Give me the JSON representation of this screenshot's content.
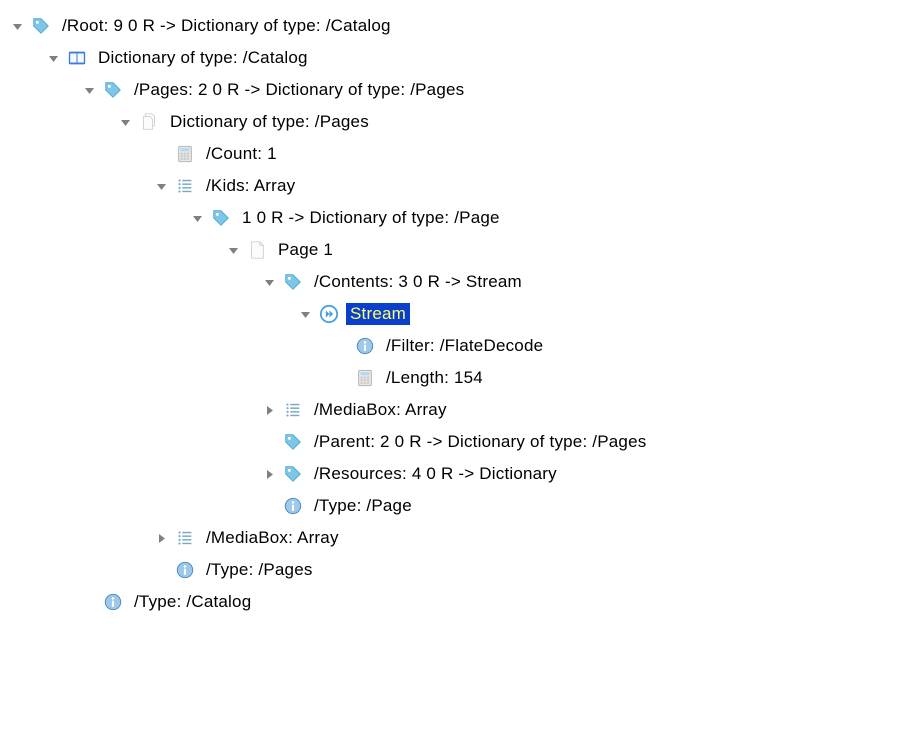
{
  "indentUnit": 36,
  "baseIndent": 2,
  "colors": {
    "selection_bg": "#0a3fce",
    "selection_fg": "#ffff66",
    "arrow": "#808080",
    "text": "#000000",
    "tag_blue": "#7fc5e8",
    "tag_stroke": "#4aa7d6",
    "book_blue": "#3f7bd9",
    "info_bg": "#9cc8ea",
    "info_border": "#4a84bb",
    "calc_fill": "#e8e8e8",
    "calc_border": "#b0b0b0",
    "list_stroke": "#7aa7c7",
    "page_fill": "#fcfcfc",
    "page_border": "#cfcfcf",
    "play_ring": "#4aa0df"
  },
  "nodes": [
    {
      "depth": 0,
      "arrow": "down",
      "icon": "tag",
      "label": "/Root: 9 0 R -> Dictionary of type: /Catalog",
      "selected": false,
      "interactable": true
    },
    {
      "depth": 1,
      "arrow": "down",
      "icon": "book",
      "label": "Dictionary of type: /Catalog",
      "selected": false,
      "interactable": true
    },
    {
      "depth": 2,
      "arrow": "down",
      "icon": "tag",
      "label": "/Pages: 2 0 R -> Dictionary of type: /Pages",
      "selected": false,
      "interactable": true
    },
    {
      "depth": 3,
      "arrow": "down",
      "icon": "pages",
      "label": "Dictionary of type: /Pages",
      "selected": false,
      "interactable": true
    },
    {
      "depth": 4,
      "arrow": "none",
      "icon": "calc",
      "label": "/Count: 1",
      "selected": false,
      "interactable": true
    },
    {
      "depth": 4,
      "arrow": "down",
      "icon": "list",
      "label": "/Kids: Array",
      "selected": false,
      "interactable": true
    },
    {
      "depth": 5,
      "arrow": "down",
      "icon": "tag",
      "label": "1 0 R -> Dictionary of type: /Page",
      "selected": false,
      "interactable": true
    },
    {
      "depth": 6,
      "arrow": "down",
      "icon": "page",
      "label": "Page 1",
      "selected": false,
      "interactable": true
    },
    {
      "depth": 7,
      "arrow": "down",
      "icon": "tag",
      "label": "/Contents: 3 0 R -> Stream",
      "selected": false,
      "interactable": true
    },
    {
      "depth": 8,
      "arrow": "down",
      "icon": "play",
      "label": "Stream",
      "selected": true,
      "interactable": true
    },
    {
      "depth": 9,
      "arrow": "none",
      "icon": "info",
      "label": "/Filter: /FlateDecode",
      "selected": false,
      "interactable": true
    },
    {
      "depth": 9,
      "arrow": "none",
      "icon": "calc",
      "label": "/Length: 154",
      "selected": false,
      "interactable": true
    },
    {
      "depth": 7,
      "arrow": "right",
      "icon": "list",
      "label": "/MediaBox: Array",
      "selected": false,
      "interactable": true
    },
    {
      "depth": 7,
      "arrow": "none",
      "icon": "tag",
      "label": "/Parent: 2 0 R -> Dictionary of type: /Pages",
      "selected": false,
      "interactable": true
    },
    {
      "depth": 7,
      "arrow": "right",
      "icon": "tag",
      "label": "/Resources: 4 0 R -> Dictionary",
      "selected": false,
      "interactable": true
    },
    {
      "depth": 7,
      "arrow": "none",
      "icon": "info",
      "label": "/Type: /Page",
      "selected": false,
      "interactable": true
    },
    {
      "depth": 4,
      "arrow": "right",
      "icon": "list",
      "label": "/MediaBox: Array",
      "selected": false,
      "interactable": true
    },
    {
      "depth": 4,
      "arrow": "none",
      "icon": "info",
      "label": "/Type: /Pages",
      "selected": false,
      "interactable": true
    },
    {
      "depth": 2,
      "arrow": "none",
      "icon": "info",
      "label": "/Type: /Catalog",
      "selected": false,
      "interactable": true
    }
  ]
}
